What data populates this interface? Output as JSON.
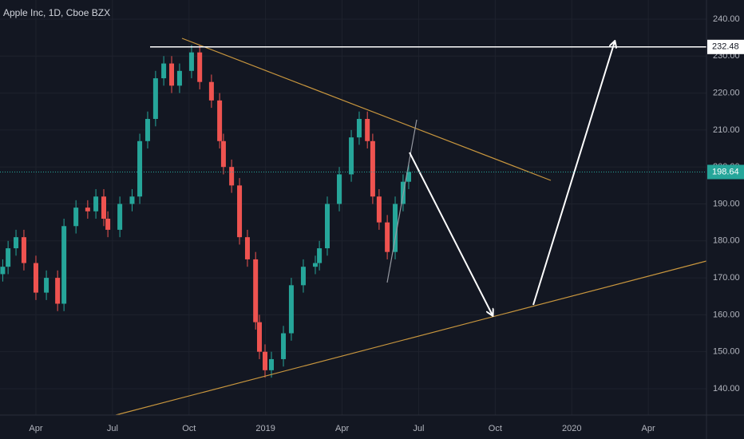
{
  "chart_data": {
    "type": "candlestick",
    "title": "Apple Inc, 1D, Cboe BZX",
    "x": [
      1.7,
      1.91,
      2.22,
      2.53,
      3.0,
      3.41,
      3.85,
      4.1,
      4.57,
      5.03,
      5.35,
      5.66,
      5.82,
      6.29,
      6.77,
      7.07,
      7.38,
      7.69,
      8.01,
      8.32,
      8.63,
      9.1,
      9.42,
      9.88,
      10.2,
      10.35,
      10.67,
      10.98,
      11.29,
      11.61,
      11.76,
      11.98,
      12.23,
      12.7,
      13.01,
      13.48,
      13.95,
      14.11,
      14.42,
      14.89,
      15.36,
      15.67,
      15.99,
      16.2,
      16.45,
      16.77,
      17.08,
      17.39,
      17.61
    ],
    "open": [
      171,
      173,
      178,
      181,
      174,
      166,
      170,
      163,
      184,
      189,
      188,
      192,
      186,
      183,
      190,
      192,
      207,
      213,
      224,
      228,
      222,
      226,
      231,
      223,
      218,
      207,
      200,
      195,
      181,
      175,
      158,
      150,
      145,
      148,
      155,
      168,
      173,
      174,
      178,
      190,
      198,
      208,
      213,
      207,
      192,
      185,
      177,
      190,
      196
    ],
    "high": [
      175,
      180,
      183,
      183,
      176,
      172,
      172,
      186,
      191,
      191,
      194,
      194,
      188,
      192,
      194,
      209,
      215,
      226,
      230,
      230,
      228,
      233,
      233,
      225,
      220,
      209,
      202,
      197,
      183,
      177,
      160,
      152,
      150,
      157,
      170,
      175,
      176,
      180,
      192,
      200,
      210,
      215,
      215,
      209,
      194,
      187,
      192,
      198,
      201
    ],
    "low": [
      169,
      171,
      176,
      172,
      164,
      164,
      161,
      161,
      182,
      186,
      186,
      184,
      181,
      181,
      188,
      190,
      205,
      211,
      222,
      220,
      220,
      224,
      221,
      216,
      205,
      198,
      193,
      179,
      173,
      156,
      148,
      143,
      143,
      146,
      153,
      166,
      171,
      172,
      176,
      188,
      196,
      206,
      205,
      190,
      183,
      175,
      175,
      188,
      194
    ],
    "close": [
      173,
      178,
      181,
      174,
      166,
      170,
      163,
      184,
      189,
      188,
      192,
      186,
      183,
      190,
      192,
      207,
      213,
      224,
      228,
      222,
      226,
      231,
      223,
      218,
      207,
      200,
      195,
      181,
      175,
      158,
      150,
      145,
      148,
      155,
      168,
      173,
      174,
      178,
      190,
      198,
      208,
      213,
      207,
      192,
      185,
      177,
      190,
      196,
      198.64
    ],
    "up_color": "#26a69a",
    "down_color": "#ef5350",
    "xlim": [
      1.593,
      29.28
    ],
    "xticks": [
      {
        "value": 3,
        "label": "Apr"
      },
      {
        "value": 6,
        "label": "Jul"
      },
      {
        "value": 9,
        "label": "Oct"
      },
      {
        "value": 12,
        "label": "2019"
      },
      {
        "value": 15,
        "label": "Apr"
      },
      {
        "value": 18,
        "label": "Jul"
      },
      {
        "value": 21,
        "label": "Oct"
      },
      {
        "value": 24,
        "label": "2020"
      },
      {
        "value": 27,
        "label": "Apr"
      }
    ],
    "ylim": [
      132.87,
      245.18
    ],
    "yticks": [
      {
        "value": 140,
        "label": "140.00"
      },
      {
        "value": 150,
        "label": "150.00"
      },
      {
        "value": 160,
        "label": "160.00"
      },
      {
        "value": 170,
        "label": "170.00"
      },
      {
        "value": 180,
        "label": "180.00"
      },
      {
        "value": 190,
        "label": "190.00"
      },
      {
        "value": 200,
        "label": "200.00"
      },
      {
        "value": 210,
        "label": "210.00"
      },
      {
        "value": 220,
        "label": "220.00"
      },
      {
        "value": 230,
        "label": "230.00"
      },
      {
        "value": 240,
        "label": "240.00"
      }
    ],
    "grid": true,
    "price_line": {
      "value": 198.64,
      "color": "#26a69a"
    },
    "level_line": {
      "value": 232.48,
      "color": "#ffffff"
    }
  }
}
